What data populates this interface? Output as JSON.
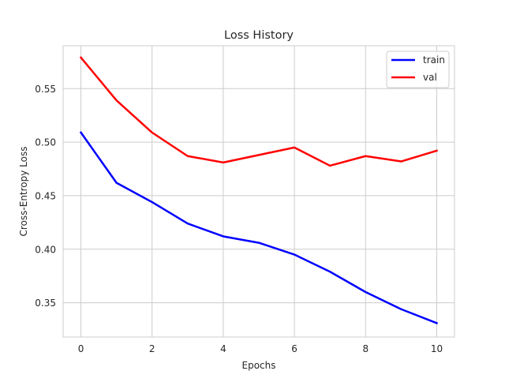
{
  "chart_data": {
    "type": "line",
    "title": "Loss History",
    "xlabel": "Epochs",
    "ylabel": "Cross-Entropy Loss",
    "x": [
      0,
      1,
      2,
      3,
      4,
      5,
      6,
      7,
      8,
      9,
      10
    ],
    "xlim": [
      -0.5,
      10.5
    ],
    "ylim": [
      0.318,
      0.59
    ],
    "xticks": [
      0,
      2,
      4,
      6,
      8,
      10
    ],
    "yticks": [
      0.35,
      0.4,
      0.45,
      0.5,
      0.55
    ],
    "xtick_labels": [
      "0",
      "2",
      "4",
      "6",
      "8",
      "10"
    ],
    "ytick_labels": [
      "0.35",
      "0.40",
      "0.45",
      "0.50",
      "0.55"
    ],
    "grid": true,
    "legend_position": "top-right",
    "series": [
      {
        "name": "train",
        "color": "#0000ff",
        "values": [
          0.509,
          0.462,
          0.444,
          0.424,
          0.412,
          0.406,
          0.395,
          0.379,
          0.36,
          0.344,
          0.331
        ]
      },
      {
        "name": "val",
        "color": "#ff0000",
        "values": [
          0.579,
          0.539,
          0.509,
          0.487,
          0.481,
          0.488,
          0.495,
          0.478,
          0.487,
          0.482,
          0.492
        ]
      }
    ]
  }
}
